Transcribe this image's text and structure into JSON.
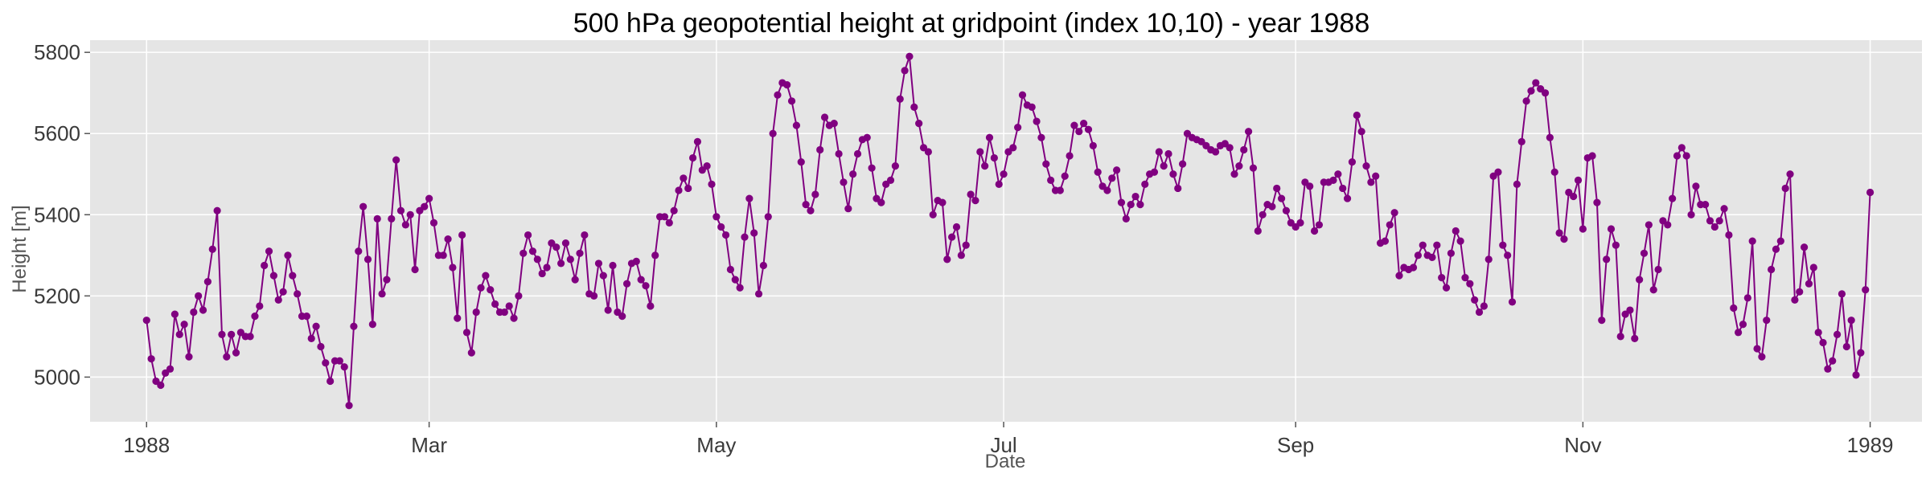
{
  "chart_data": {
    "type": "line",
    "title": "500 hPa geopotential height at gridpoint (index 10,10) - year 1988",
    "xlabel": "Date",
    "ylabel": "Height [m]",
    "x_start": "1988-01-01",
    "x_range": [
      "1987-12-20",
      "1989-01-12"
    ],
    "ylim": [
      4890,
      5830
    ],
    "grid": true,
    "legend": "none",
    "colors": {
      "series": "#800080",
      "plot_bg": "#e5e5e5",
      "grid": "#ffffff"
    },
    "x_ticks": [
      {
        "date": "1988-01-01",
        "label": "1988"
      },
      {
        "date": "1988-03-01",
        "label": "Mar"
      },
      {
        "date": "1988-05-01",
        "label": "May"
      },
      {
        "date": "1988-07-01",
        "label": "Jul"
      },
      {
        "date": "1988-09-01",
        "label": "Sep"
      },
      {
        "date": "1988-11-01",
        "label": "Nov"
      },
      {
        "date": "1989-01-01",
        "label": "1989"
      }
    ],
    "y_ticks": [
      5000,
      5200,
      5400,
      5600,
      5800
    ],
    "series": [
      {
        "values": [
          5140,
          5045,
          4990,
          4980,
          5010,
          5020,
          5155,
          5105,
          5130,
          5050,
          5160,
          5200,
          5165,
          5235,
          5315,
          5410,
          5105,
          5050,
          5105,
          5060,
          5110,
          5100,
          5100,
          5150,
          5175,
          5275,
          5310,
          5250,
          5190,
          5210,
          5300,
          5250,
          5205,
          5150,
          5150,
          5095,
          5125,
          5075,
          5035,
          4990,
          5040,
          5040,
          5025,
          4930,
          5125,
          5310,
          5420,
          5290,
          5130,
          5390,
          5205,
          5240,
          5390,
          5535,
          5410,
          5375,
          5400,
          5265,
          5410,
          5420,
          5440,
          5380,
          5300,
          5300,
          5340,
          5270,
          5145,
          5350,
          5110,
          5060,
          5160,
          5220,
          5250,
          5215,
          5180,
          5160,
          5160,
          5175,
          5145,
          5200,
          5305,
          5350,
          5310,
          5290,
          5255,
          5270,
          5330,
          5320,
          5280,
          5330,
          5290,
          5240,
          5305,
          5350,
          5205,
          5200,
          5280,
          5250,
          5165,
          5275,
          5160,
          5150,
          5230,
          5280,
          5285,
          5240,
          5225,
          5175,
          5300,
          5395,
          5395,
          5380,
          5410,
          5460,
          5490,
          5465,
          5540,
          5580,
          5510,
          5520,
          5475,
          5395,
          5370,
          5350,
          5265,
          5240,
          5220,
          5345,
          5440,
          5355,
          5205,
          5275,
          5395,
          5600,
          5695,
          5725,
          5720,
          5680,
          5620,
          5530,
          5425,
          5410,
          5450,
          5560,
          5640,
          5620,
          5625,
          5550,
          5480,
          5415,
          5500,
          5550,
          5585,
          5590,
          5515,
          5440,
          5430,
          5475,
          5485,
          5520,
          5685,
          5755,
          5790,
          5665,
          5625,
          5565,
          5555,
          5400,
          5435,
          5430,
          5290,
          5345,
          5370,
          5300,
          5325,
          5450,
          5435,
          5555,
          5520,
          5590,
          5540,
          5475,
          5500,
          5555,
          5565,
          5615,
          5695,
          5670,
          5665,
          5630,
          5590,
          5525,
          5485,
          5460,
          5460,
          5495,
          5545,
          5620,
          5605,
          5625,
          5610,
          5570,
          5505,
          5470,
          5460,
          5490,
          5510,
          5430,
          5390,
          5425,
          5445,
          5425,
          5475,
          5500,
          5505,
          5555,
          5520,
          5550,
          5500,
          5465,
          5525,
          5600,
          5590,
          5585,
          5580,
          5570,
          5560,
          5555,
          5570,
          5575,
          5565,
          5500,
          5520,
          5560,
          5605,
          5515,
          5360,
          5400,
          5425,
          5420,
          5465,
          5440,
          5410,
          5380,
          5370,
          5380,
          5480,
          5470,
          5360,
          5375,
          5480,
          5480,
          5485,
          5500,
          5465,
          5440,
          5530,
          5645,
          5605,
          5520,
          5480,
          5495,
          5330,
          5335,
          5375,
          5405,
          5250,
          5270,
          5265,
          5270,
          5300,
          5325,
          5300,
          5295,
          5325,
          5245,
          5220,
          5305,
          5360,
          5335,
          5245,
          5230,
          5190,
          5160,
          5175,
          5290,
          5495,
          5505,
          5325,
          5300,
          5185,
          5475,
          5580,
          5680,
          5705,
          5725,
          5710,
          5700,
          5590,
          5505,
          5355,
          5340,
          5455,
          5445,
          5485,
          5365,
          5540,
          5545,
          5430,
          5140,
          5290,
          5365,
          5325,
          5100,
          5155,
          5165,
          5095,
          5240,
          5305,
          5375,
          5215,
          5265,
          5385,
          5375,
          5440,
          5545,
          5565,
          5545,
          5400,
          5470,
          5425,
          5425,
          5385,
          5370,
          5385,
          5415,
          5350,
          5170,
          5110,
          5130,
          5195,
          5335,
          5070,
          5050,
          5140,
          5265,
          5315,
          5335,
          5465,
          5500,
          5190,
          5210,
          5320,
          5230,
          5270,
          5110,
          5085,
          5020,
          5040,
          5105,
          5205,
          5075,
          5140,
          5005,
          5060,
          5215,
          5455
        ]
      }
    ]
  }
}
